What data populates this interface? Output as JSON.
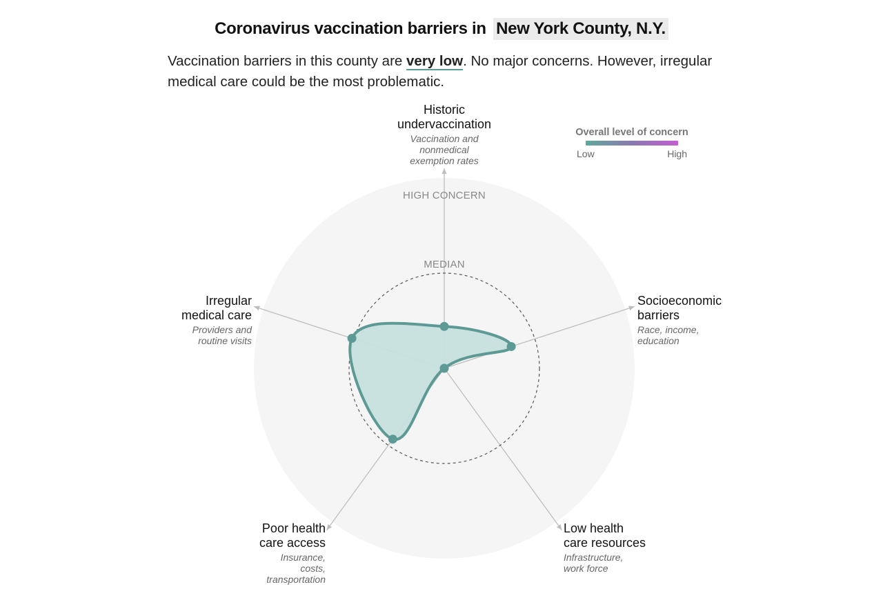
{
  "header": {
    "title_prefix": "Coronavirus vaccination barriers in",
    "county": "New York County, N.Y."
  },
  "dek": {
    "before": "Vaccination barriers in this county are ",
    "level": "very low",
    "after": ". No major concerns. However, irregular medical care could be the most problematic."
  },
  "legend": {
    "title": "Overall level of concern",
    "low": "Low",
    "high": "High",
    "colors": [
      "#5fa89b",
      "#c35fd0"
    ]
  },
  "ring_labels": {
    "outer": "HIGH CONCERN",
    "median": "MEDIAN"
  },
  "colors": {
    "fill": "#c6dfdd",
    "stroke": "#5d9a95",
    "background_disc": "#f5f5f5",
    "axis": "#bdbdbd",
    "median_ring": "#555555"
  },
  "chart_data": {
    "type": "radar",
    "scale": {
      "min": 0,
      "median": 0.5,
      "max": 1
    },
    "axes": [
      {
        "key": "historic",
        "name": "Historic undervaccination",
        "title_lines": [
          "Historic",
          "undervaccination"
        ],
        "sub_lines": [
          "Vaccination and",
          "nonmedical",
          "exemption rates"
        ]
      },
      {
        "key": "socioeconomic",
        "name": "Socioeconomic barriers",
        "title_lines": [
          "Socioeconomic",
          "barriers"
        ],
        "sub_lines": [
          "Race, income,",
          "education"
        ]
      },
      {
        "key": "resources",
        "name": "Low health care resources",
        "title_lines": [
          "Low health",
          "care resources"
        ],
        "sub_lines": [
          "Infrastructure,",
          "work force"
        ]
      },
      {
        "key": "access",
        "name": "Poor health care access",
        "title_lines": [
          "Poor health",
          "care access"
        ],
        "sub_lines": [
          "Insurance,",
          "costs,",
          "transportation"
        ]
      },
      {
        "key": "irregular",
        "name": "Irregular medical care",
        "title_lines": [
          "Irregular",
          "medical care"
        ],
        "sub_lines": [
          "Providers and",
          "routine visits"
        ]
      }
    ],
    "values": [
      0.22,
      0.37,
      0.0,
      0.46,
      0.51
    ],
    "series": [
      {
        "name": "New York County, N.Y.",
        "values": [
          0.22,
          0.37,
          0.0,
          0.46,
          0.51
        ]
      }
    ]
  }
}
